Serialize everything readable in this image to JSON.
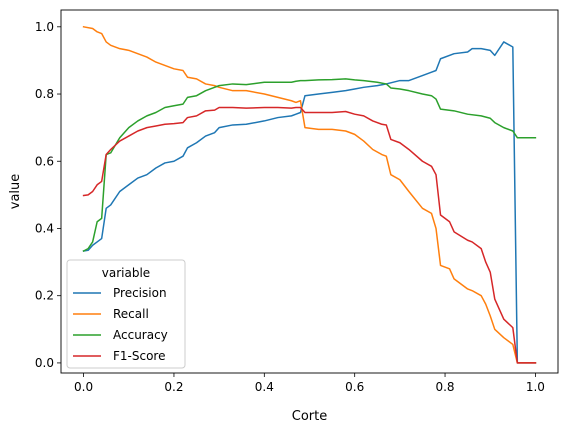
{
  "chart_data": {
    "type": "line",
    "xlabel": "Corte",
    "ylabel": "value",
    "xlim": [
      -0.05,
      1.05
    ],
    "ylim": [
      -0.03,
      1.05
    ],
    "xticks": [
      0.0,
      0.2,
      0.4,
      0.6,
      0.8,
      1.0
    ],
    "xtick_labels": [
      "0.0",
      "0.2",
      "0.4",
      "0.6",
      "0.8",
      "1.0"
    ],
    "yticks": [
      0.0,
      0.2,
      0.4,
      0.6,
      0.8,
      1.0
    ],
    "ytick_labels": [
      "0.0",
      "0.2",
      "0.4",
      "0.6",
      "0.8",
      "1.0"
    ],
    "grid": false,
    "legend": {
      "title": "variable",
      "placement": "lower-left"
    },
    "series": [
      {
        "name": "Precision",
        "color": "#1f77b4",
        "x": [
          0.0,
          0.01,
          0.02,
          0.03,
          0.04,
          0.05,
          0.06,
          0.08,
          0.1,
          0.12,
          0.14,
          0.16,
          0.18,
          0.2,
          0.22,
          0.23,
          0.25,
          0.27,
          0.29,
          0.3,
          0.33,
          0.36,
          0.4,
          0.43,
          0.46,
          0.47,
          0.48,
          0.49,
          0.52,
          0.55,
          0.58,
          0.6,
          0.62,
          0.65,
          0.67,
          0.7,
          0.72,
          0.75,
          0.77,
          0.78,
          0.79,
          0.82,
          0.85,
          0.86,
          0.88,
          0.9,
          0.91,
          0.93,
          0.95,
          0.96,
          1.0
        ],
        "values": [
          0.333,
          0.335,
          0.35,
          0.36,
          0.37,
          0.46,
          0.47,
          0.51,
          0.53,
          0.55,
          0.56,
          0.58,
          0.595,
          0.6,
          0.615,
          0.64,
          0.655,
          0.675,
          0.685,
          0.7,
          0.708,
          0.71,
          0.72,
          0.73,
          0.735,
          0.74,
          0.745,
          0.795,
          0.8,
          0.805,
          0.81,
          0.815,
          0.82,
          0.825,
          0.83,
          0.84,
          0.84,
          0.855,
          0.865,
          0.87,
          0.905,
          0.92,
          0.925,
          0.935,
          0.935,
          0.93,
          0.915,
          0.955,
          0.94,
          0.0,
          0.0
        ]
      },
      {
        "name": "Recall",
        "color": "#ff7f0e",
        "x": [
          0.0,
          0.02,
          0.03,
          0.04,
          0.05,
          0.06,
          0.08,
          0.1,
          0.12,
          0.14,
          0.16,
          0.18,
          0.2,
          0.22,
          0.23,
          0.25,
          0.27,
          0.29,
          0.3,
          0.33,
          0.36,
          0.4,
          0.43,
          0.46,
          0.47,
          0.48,
          0.49,
          0.52,
          0.55,
          0.58,
          0.6,
          0.62,
          0.64,
          0.66,
          0.67,
          0.68,
          0.7,
          0.72,
          0.75,
          0.77,
          0.78,
          0.79,
          0.81,
          0.82,
          0.85,
          0.86,
          0.88,
          0.89,
          0.9,
          0.91,
          0.93,
          0.95,
          0.96,
          1.0
        ],
        "values": [
          1.0,
          0.995,
          0.985,
          0.98,
          0.955,
          0.945,
          0.935,
          0.93,
          0.92,
          0.91,
          0.895,
          0.885,
          0.875,
          0.87,
          0.85,
          0.845,
          0.83,
          0.825,
          0.82,
          0.81,
          0.81,
          0.8,
          0.79,
          0.78,
          0.775,
          0.78,
          0.7,
          0.695,
          0.695,
          0.69,
          0.68,
          0.66,
          0.635,
          0.62,
          0.615,
          0.56,
          0.545,
          0.51,
          0.46,
          0.445,
          0.4,
          0.29,
          0.28,
          0.25,
          0.22,
          0.215,
          0.2,
          0.175,
          0.14,
          0.1,
          0.075,
          0.055,
          0.0,
          0.0
        ]
      },
      {
        "name": "Accuracy",
        "color": "#2ca02c",
        "x": [
          0.0,
          0.01,
          0.02,
          0.03,
          0.04,
          0.05,
          0.06,
          0.08,
          0.1,
          0.12,
          0.14,
          0.16,
          0.18,
          0.2,
          0.22,
          0.23,
          0.25,
          0.27,
          0.29,
          0.3,
          0.33,
          0.36,
          0.4,
          0.43,
          0.46,
          0.47,
          0.48,
          0.49,
          0.52,
          0.55,
          0.58,
          0.6,
          0.62,
          0.65,
          0.67,
          0.68,
          0.7,
          0.72,
          0.75,
          0.77,
          0.78,
          0.79,
          0.82,
          0.85,
          0.88,
          0.9,
          0.91,
          0.93,
          0.95,
          0.96,
          1.0
        ],
        "values": [
          0.333,
          0.34,
          0.36,
          0.42,
          0.43,
          0.62,
          0.625,
          0.67,
          0.7,
          0.72,
          0.735,
          0.745,
          0.76,
          0.765,
          0.77,
          0.79,
          0.795,
          0.81,
          0.82,
          0.825,
          0.83,
          0.828,
          0.835,
          0.835,
          0.835,
          0.838,
          0.84,
          0.84,
          0.842,
          0.843,
          0.845,
          0.842,
          0.84,
          0.835,
          0.83,
          0.818,
          0.815,
          0.81,
          0.8,
          0.795,
          0.785,
          0.755,
          0.75,
          0.74,
          0.735,
          0.728,
          0.715,
          0.7,
          0.69,
          0.67,
          0.67
        ]
      },
      {
        "name": "F1-Score",
        "color": "#d62728",
        "x": [
          0.0,
          0.01,
          0.02,
          0.03,
          0.04,
          0.05,
          0.06,
          0.08,
          0.1,
          0.12,
          0.14,
          0.16,
          0.18,
          0.2,
          0.22,
          0.23,
          0.25,
          0.27,
          0.29,
          0.3,
          0.33,
          0.36,
          0.4,
          0.43,
          0.46,
          0.47,
          0.48,
          0.49,
          0.52,
          0.55,
          0.58,
          0.6,
          0.62,
          0.64,
          0.66,
          0.67,
          0.68,
          0.7,
          0.72,
          0.75,
          0.77,
          0.78,
          0.79,
          0.81,
          0.82,
          0.85,
          0.86,
          0.88,
          0.89,
          0.9,
          0.91,
          0.93,
          0.95,
          0.96,
          1.0
        ],
        "values": [
          0.498,
          0.5,
          0.51,
          0.53,
          0.54,
          0.62,
          0.635,
          0.66,
          0.675,
          0.69,
          0.7,
          0.705,
          0.71,
          0.712,
          0.715,
          0.73,
          0.735,
          0.75,
          0.752,
          0.76,
          0.76,
          0.758,
          0.76,
          0.76,
          0.758,
          0.76,
          0.76,
          0.745,
          0.745,
          0.745,
          0.748,
          0.74,
          0.735,
          0.72,
          0.71,
          0.708,
          0.665,
          0.655,
          0.635,
          0.6,
          0.585,
          0.56,
          0.44,
          0.42,
          0.39,
          0.365,
          0.36,
          0.34,
          0.3,
          0.27,
          0.19,
          0.13,
          0.105,
          0.0,
          0.0
        ]
      }
    ]
  }
}
